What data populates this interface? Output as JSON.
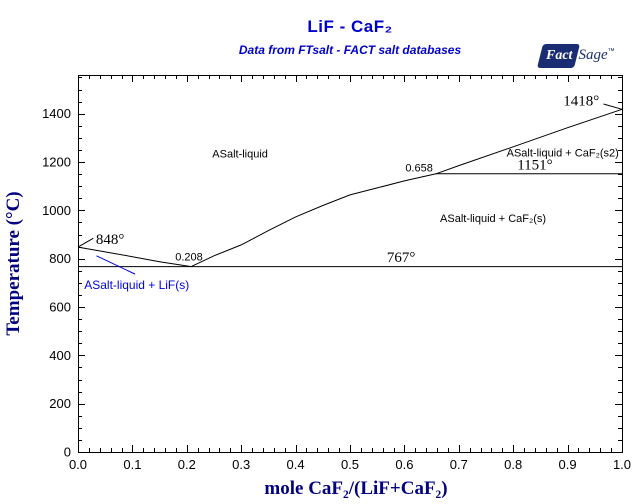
{
  "header": {
    "title": "LiF - CaF₂",
    "subtitle": "Data from FTsalt - FACT salt databases",
    "logo": {
      "fact": "Fact",
      "sage": "Sage",
      "tm": "™"
    }
  },
  "colors": {
    "title_blue": "#0000CC",
    "axis_navy": "#000080",
    "region_blue": "#0000E6",
    "line_black": "#000000",
    "logo_navy": "#1B2D72"
  },
  "chart_data": {
    "type": "line",
    "title": "LiF - CaF₂",
    "subtitle": "Data from FTsalt - FACT salt databases",
    "xlabel": "mole CaF₂/(LiF+CaF₂)",
    "ylabel": "Temperature (°C)",
    "xlim": [
      0,
      1
    ],
    "ylim": [
      0,
      1560
    ],
    "x_major_step": 0.1,
    "x_minor_step": 0.02,
    "y_major_step": 200,
    "y_minor_step": 50,
    "y_label_max": 1400,
    "grid": false,
    "legend": "none",
    "series": [
      {
        "name": "liquidus-LiF-branch",
        "points": [
          [
            0,
            848
          ],
          [
            0.05,
            828
          ],
          [
            0.1,
            808
          ],
          [
            0.15,
            787
          ],
          [
            0.208,
            767
          ]
        ]
      },
      {
        "name": "liquidus-CaF2-branch",
        "points": [
          [
            0.208,
            767
          ],
          [
            0.25,
            812
          ],
          [
            0.3,
            857
          ],
          [
            0.35,
            916
          ],
          [
            0.4,
            973
          ],
          [
            0.45,
            1020
          ],
          [
            0.5,
            1064
          ],
          [
            0.55,
            1093
          ],
          [
            0.6,
            1122
          ],
          [
            0.658,
            1151
          ],
          [
            0.7,
            1185
          ],
          [
            0.8,
            1263
          ],
          [
            0.9,
            1342
          ],
          [
            1,
            1418
          ]
        ]
      },
      {
        "name": "eutectic-isotherm-767",
        "points": [
          [
            0,
            767
          ],
          [
            1,
            767
          ]
        ]
      },
      {
        "name": "CaF2-s-s2-transition-isotherm-1151",
        "points": [
          [
            0.658,
            1151
          ],
          [
            1,
            1151
          ]
        ]
      }
    ],
    "key_points": {
      "LiF_melting_C": 848,
      "eutectic_x": 0.208,
      "eutectic_C": 767,
      "transition_x": 0.658,
      "transition_C": 1151,
      "CaF2_melting_C": 1418
    },
    "annotations": [
      {
        "text": "848°",
        "x": 0.059,
        "t": 878,
        "kind": "temp"
      },
      {
        "text": "0.208",
        "x": 0.204,
        "t": 808,
        "kind": "comp"
      },
      {
        "text": "767°",
        "x": 0.594,
        "t": 803,
        "kind": "temp"
      },
      {
        "text": "0.658",
        "x": 0.627,
        "t": 1178,
        "kind": "comp"
      },
      {
        "text": "1151°",
        "x": 0.84,
        "t": 1185,
        "kind": "temp"
      },
      {
        "text": "1418°",
        "x": 0.925,
        "t": 1450,
        "kind": "temp"
      },
      {
        "text": "ASalt-liquid",
        "x": 0.298,
        "t": 1235,
        "kind": "region"
      },
      {
        "text": "ASalt-liquid + CaF₂(s2)",
        "x": 0.891,
        "t": 1240,
        "kind": "region"
      },
      {
        "text": "ASalt-liquid + CaF₂(s)",
        "x": 0.763,
        "t": 968,
        "kind": "region"
      },
      {
        "text": "ASalt-liquid + LiF(s)",
        "x": 0.108,
        "t": 692,
        "kind": "region-blue"
      }
    ],
    "leader_lines": [
      {
        "x1": 0.0,
        "t1": 848,
        "x2": 0.028,
        "t2": 884,
        "color": "#000000"
      },
      {
        "x1": 1.0,
        "t1": 1418,
        "x2": 0.966,
        "t2": 1440,
        "color": "#000000"
      },
      {
        "x1": 0.034,
        "t1": 812,
        "x2": 0.105,
        "t2": 736,
        "color": "#0000E6"
      }
    ]
  }
}
